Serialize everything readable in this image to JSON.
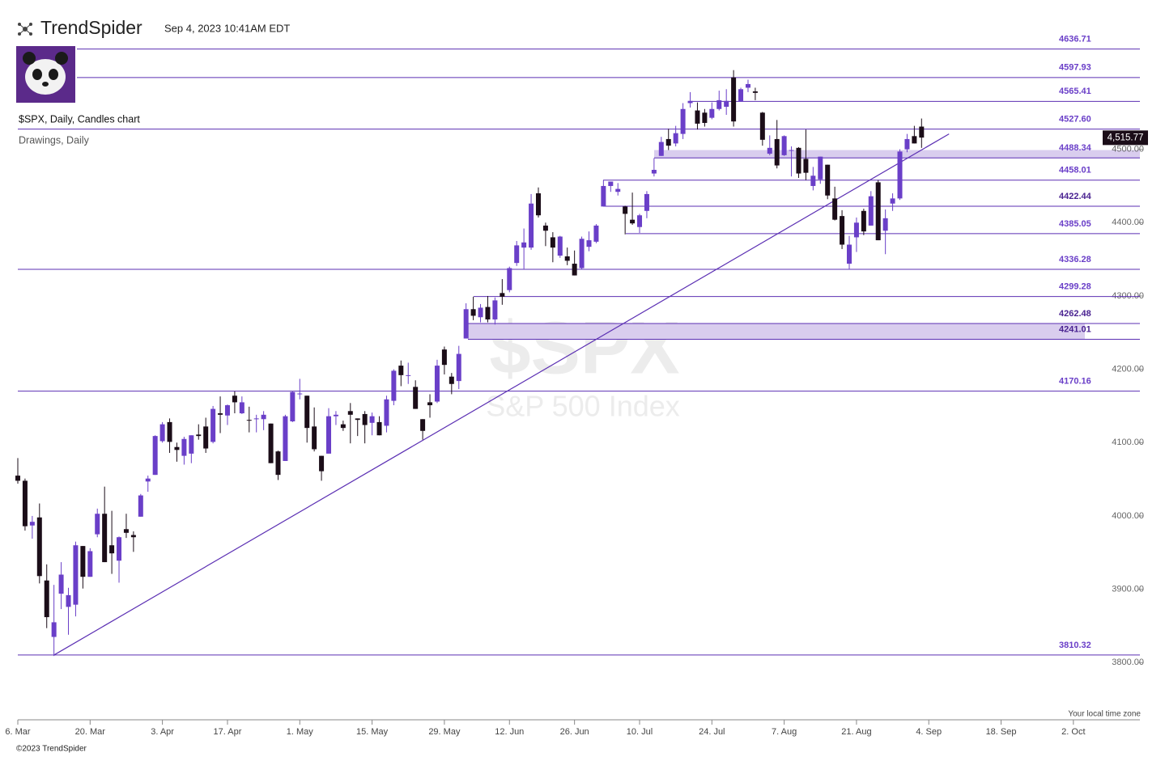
{
  "header": {
    "brand": "TrendSpider",
    "timestamp": "Sep 4, 2023 10:41AM EDT",
    "chart_title": "$SPX, Daily, Candles chart",
    "drawings": "Drawings, Daily",
    "watermark_symbol": "$SPX",
    "watermark_name": "S&P 500 Index",
    "timezone": "Your local time zone",
    "copyright": "©2023 TrendSpider"
  },
  "chart_data": {
    "type": "candlestick",
    "up_color": "#6a3fc8",
    "down_color": "#1b0d18",
    "line_color": "#5b2fb3",
    "zone_color": "#d9cdee",
    "ylim": [
      3722,
      4654
    ],
    "xlim": [
      0,
      155.2
    ],
    "yticks": [
      {
        "value": 3800,
        "label": "3800.00"
      },
      {
        "value": 3900,
        "label": "3900.00"
      },
      {
        "value": 4000,
        "label": "4000.00"
      },
      {
        "value": 4100,
        "label": "4100.00"
      },
      {
        "value": 4200,
        "label": "4200.00"
      },
      {
        "value": 4300,
        "label": "4300.00"
      },
      {
        "value": 4400,
        "label": "4400.00"
      },
      {
        "value": 4500,
        "label": "4500.00"
      }
    ],
    "xticks": [
      {
        "value": 0,
        "label": "6. Mar"
      },
      {
        "value": 10,
        "label": "20. Mar"
      },
      {
        "value": 20,
        "label": "3. Apr"
      },
      {
        "value": 29,
        "label": "17. Apr"
      },
      {
        "value": 39,
        "label": "1. May"
      },
      {
        "value": 49,
        "label": "15. May"
      },
      {
        "value": 59,
        "label": "29. May"
      },
      {
        "value": 68,
        "label": "12. Jun"
      },
      {
        "value": 77,
        "label": "26. Jun"
      },
      {
        "value": 86,
        "label": "10. Jul"
      },
      {
        "value": 96,
        "label": "24. Jul"
      },
      {
        "value": 106,
        "label": "7. Aug"
      },
      {
        "value": 116,
        "label": "21. Aug"
      },
      {
        "value": 126,
        "label": "4. Sep"
      },
      {
        "value": 136,
        "label": "18. Sep"
      },
      {
        "value": 146,
        "label": "2. Oct"
      }
    ],
    "levels": [
      {
        "value": 4636.71,
        "label": "4636.71"
      },
      {
        "value": 4597.93,
        "label": "4597.93"
      },
      {
        "value": 4565.41,
        "label": "4565.41"
      },
      {
        "value": 4527.6,
        "label": "4527.60"
      },
      {
        "value": 4488.34,
        "label": "4488.34"
      },
      {
        "value": 4458.01,
        "label": "4458.01"
      },
      {
        "value": 4422.44,
        "label": "4422.44"
      },
      {
        "value": 4385.05,
        "label": "4385.05"
      },
      {
        "value": 4336.28,
        "label": "4336.28"
      },
      {
        "value": 4299.28,
        "label": "4299.28"
      },
      {
        "value": 4262.48,
        "label": "4262.48"
      },
      {
        "value": 4241.01,
        "label": "4241.01"
      },
      {
        "value": 4170.16,
        "label": "4170.16"
      },
      {
        "value": 3810.32,
        "label": "3810.32"
      }
    ],
    "zones": [
      [
        4488.34,
        4499
      ],
      [
        4241.01,
        4262.48
      ]
    ],
    "trendline": {
      "x": [
        5,
        128.8
      ],
      "y": [
        3810.32,
        4521
      ]
    },
    "last_price": {
      "value": 4515.77,
      "label": "4,515.77"
    },
    "candles": [
      [
        4055,
        4079,
        4044,
        4048
      ],
      [
        4048,
        4051,
        3980,
        3986
      ],
      [
        3987,
        4000,
        3969,
        3992
      ],
      [
        3998,
        4017,
        3908,
        3918
      ],
      [
        3912,
        3934,
        3847,
        3862
      ],
      [
        3835,
        3906,
        3809,
        3855
      ],
      [
        3894,
        3937,
        3873,
        3920
      ],
      [
        3876,
        3902,
        3838,
        3892
      ],
      [
        3879,
        3965,
        3863,
        3960
      ],
      [
        3959,
        3959,
        3901,
        3917
      ],
      [
        3917,
        3956,
        3917,
        3952
      ],
      [
        3975,
        4010,
        3971,
        4003
      ],
      [
        4003,
        4040,
        3937,
        3937
      ],
      [
        3960,
        4007,
        3921,
        3949
      ],
      [
        3939,
        3972,
        3909,
        3971
      ],
      [
        3982,
        4003,
        3970,
        3977
      ],
      [
        3974,
        3979,
        3951,
        3971
      ],
      [
        3999,
        4030,
        3999,
        4028
      ],
      [
        4047,
        4055,
        4033,
        4051
      ],
      [
        4056,
        4110,
        4056,
        4109
      ],
      [
        4102,
        4128,
        4100,
        4125
      ],
      [
        4128,
        4133,
        4086,
        4101
      ],
      [
        4094,
        4100,
        4074,
        4090
      ],
      [
        4082,
        4108,
        4070,
        4105
      ],
      [
        4085,
        4110,
        4072,
        4110
      ],
      [
        4111,
        4125,
        4104,
        4109
      ],
      [
        4122,
        4134,
        4086,
        4092
      ],
      [
        4101,
        4150,
        4099,
        4146
      ],
      [
        4140,
        4163,
        4113,
        4138
      ],
      [
        4137,
        4152,
        4124,
        4151
      ],
      [
        4164,
        4170,
        4140,
        4155
      ],
      [
        4140,
        4163,
        4139,
        4155
      ],
      [
        4131,
        4149,
        4114,
        4130
      ],
      [
        4132,
        4138,
        4114,
        4133
      ],
      [
        4132,
        4143,
        4117,
        4138
      ],
      [
        4126,
        4126,
        4072,
        4072
      ],
      [
        4088,
        4089,
        4049,
        4056
      ],
      [
        4075,
        4138,
        4075,
        4136
      ],
      [
        4129,
        4170,
        4128,
        4169
      ],
      [
        4166,
        4187,
        4159,
        4167
      ],
      [
        4164,
        4164,
        4100,
        4120
      ],
      [
        4122,
        4148,
        4088,
        4091
      ],
      [
        4082,
        4082,
        4048,
        4061
      ],
      [
        4085,
        4147,
        4085,
        4136
      ],
      [
        4136,
        4143,
        4124,
        4138
      ],
      [
        4125,
        4130,
        4116,
        4120
      ],
      [
        4143,
        4154,
        4099,
        4138
      ],
      [
        4133,
        4133,
        4109,
        4131
      ],
      [
        4139,
        4143,
        4099,
        4124
      ],
      [
        4127,
        4141,
        4110,
        4136
      ],
      [
        4128,
        4136,
        4110,
        4110
      ],
      [
        4123,
        4164,
        4114,
        4159
      ],
      [
        4157,
        4200,
        4151,
        4198
      ],
      [
        4205,
        4212,
        4177,
        4192
      ],
      [
        4191,
        4209,
        4180,
        4192
      ],
      [
        4176,
        4185,
        4146,
        4146
      ],
      [
        4132,
        4132,
        4104,
        4116
      ],
      [
        4155,
        4166,
        4134,
        4151
      ],
      [
        4156,
        4213,
        4154,
        4205
      ],
      [
        4227,
        4231,
        4193,
        4206
      ],
      [
        4190,
        4195,
        4166,
        4180
      ],
      [
        4184,
        4232,
        4173,
        4221
      ],
      [
        4242,
        4290,
        4242,
        4282
      ],
      [
        4282,
        4299,
        4267,
        4273
      ],
      [
        4271,
        4289,
        4264,
        4284
      ],
      [
        4285,
        4300,
        4264,
        4268
      ],
      [
        4268,
        4298,
        4261,
        4294
      ],
      [
        4304,
        4323,
        4288,
        4299
      ],
      [
        4308,
        4340,
        4305,
        4338
      ],
      [
        4345,
        4375,
        4341,
        4369
      ],
      [
        4366,
        4392,
        4337,
        4373
      ],
      [
        4366,
        4439,
        4363,
        4426
      ],
      [
        4440,
        4448,
        4407,
        4410
      ],
      [
        4396,
        4400,
        4368,
        4389
      ],
      [
        4380,
        4387,
        4346,
        4366
      ],
      [
        4355,
        4382,
        4352,
        4381
      ],
      [
        4354,
        4366,
        4342,
        4348
      ],
      [
        4344,
        4362,
        4328,
        4328
      ],
      [
        4338,
        4381,
        4336,
        4378
      ],
      [
        4367,
        4388,
        4361,
        4376
      ],
      [
        4374,
        4398,
        4372,
        4396
      ],
      [
        4422,
        4458,
        4422,
        4450
      ],
      [
        4450,
        4456,
        4442,
        4456
      ],
      [
        4442,
        4454,
        4437,
        4446
      ],
      [
        4422,
        4423,
        4384,
        4412
      ],
      [
        4404,
        4441,
        4397,
        4399
      ],
      [
        4394,
        4412,
        4386,
        4410
      ],
      [
        4416,
        4443,
        4406,
        4439
      ],
      [
        4467,
        4488,
        4463,
        4472
      ],
      [
        4491,
        4517,
        4491,
        4510
      ],
      [
        4514,
        4528,
        4499,
        4505
      ],
      [
        4508,
        4532,
        4504,
        4522
      ],
      [
        4521,
        4563,
        4514,
        4555
      ],
      [
        4563,
        4578,
        4557,
        4566
      ],
      [
        4553,
        4564,
        4527,
        4535
      ],
      [
        4550,
        4555,
        4531,
        4536
      ],
      [
        4543,
        4564,
        4541,
        4555
      ],
      [
        4555,
        4580,
        4553,
        4567
      ],
      [
        4558,
        4582,
        4547,
        4566
      ],
      [
        4598,
        4608,
        4531,
        4538
      ],
      [
        4565,
        4584,
        4565,
        4582
      ],
      [
        4584,
        4595,
        4578,
        4589
      ],
      [
        4579,
        4584,
        4567,
        4577
      ],
      [
        4550,
        4551,
        4505,
        4513
      ],
      [
        4494,
        4519,
        4492,
        4502
      ],
      [
        4514,
        4540,
        4474,
        4478
      ],
      [
        4492,
        4519,
        4491,
        4518
      ],
      [
        4498,
        4504,
        4463,
        4499
      ],
      [
        4502,
        4503,
        4461,
        4467
      ],
      [
        4487,
        4527,
        4458,
        4468
      ],
      [
        4450,
        4476,
        4444,
        4464
      ],
      [
        4459,
        4490,
        4453,
        4490
      ],
      [
        4479,
        4479,
        4432,
        4437
      ],
      [
        4433,
        4449,
        4403,
        4404
      ],
      [
        4409,
        4417,
        4364,
        4370
      ],
      [
        4344,
        4382,
        4336,
        4370
      ],
      [
        4380,
        4407,
        4360,
        4400
      ],
      [
        4416,
        4419,
        4383,
        4388
      ],
      [
        4396,
        4443,
        4396,
        4436
      ],
      [
        4455,
        4458,
        4376,
        4376
      ],
      [
        4389,
        4418,
        4357,
        4406
      ],
      [
        4426,
        4440,
        4416,
        4433
      ],
      [
        4433,
        4500,
        4431,
        4497
      ],
      [
        4500,
        4521,
        4496,
        4514
      ],
      [
        4518,
        4532,
        4508,
        4508
      ],
      [
        4531,
        4542,
        4502,
        4516
      ]
    ]
  }
}
